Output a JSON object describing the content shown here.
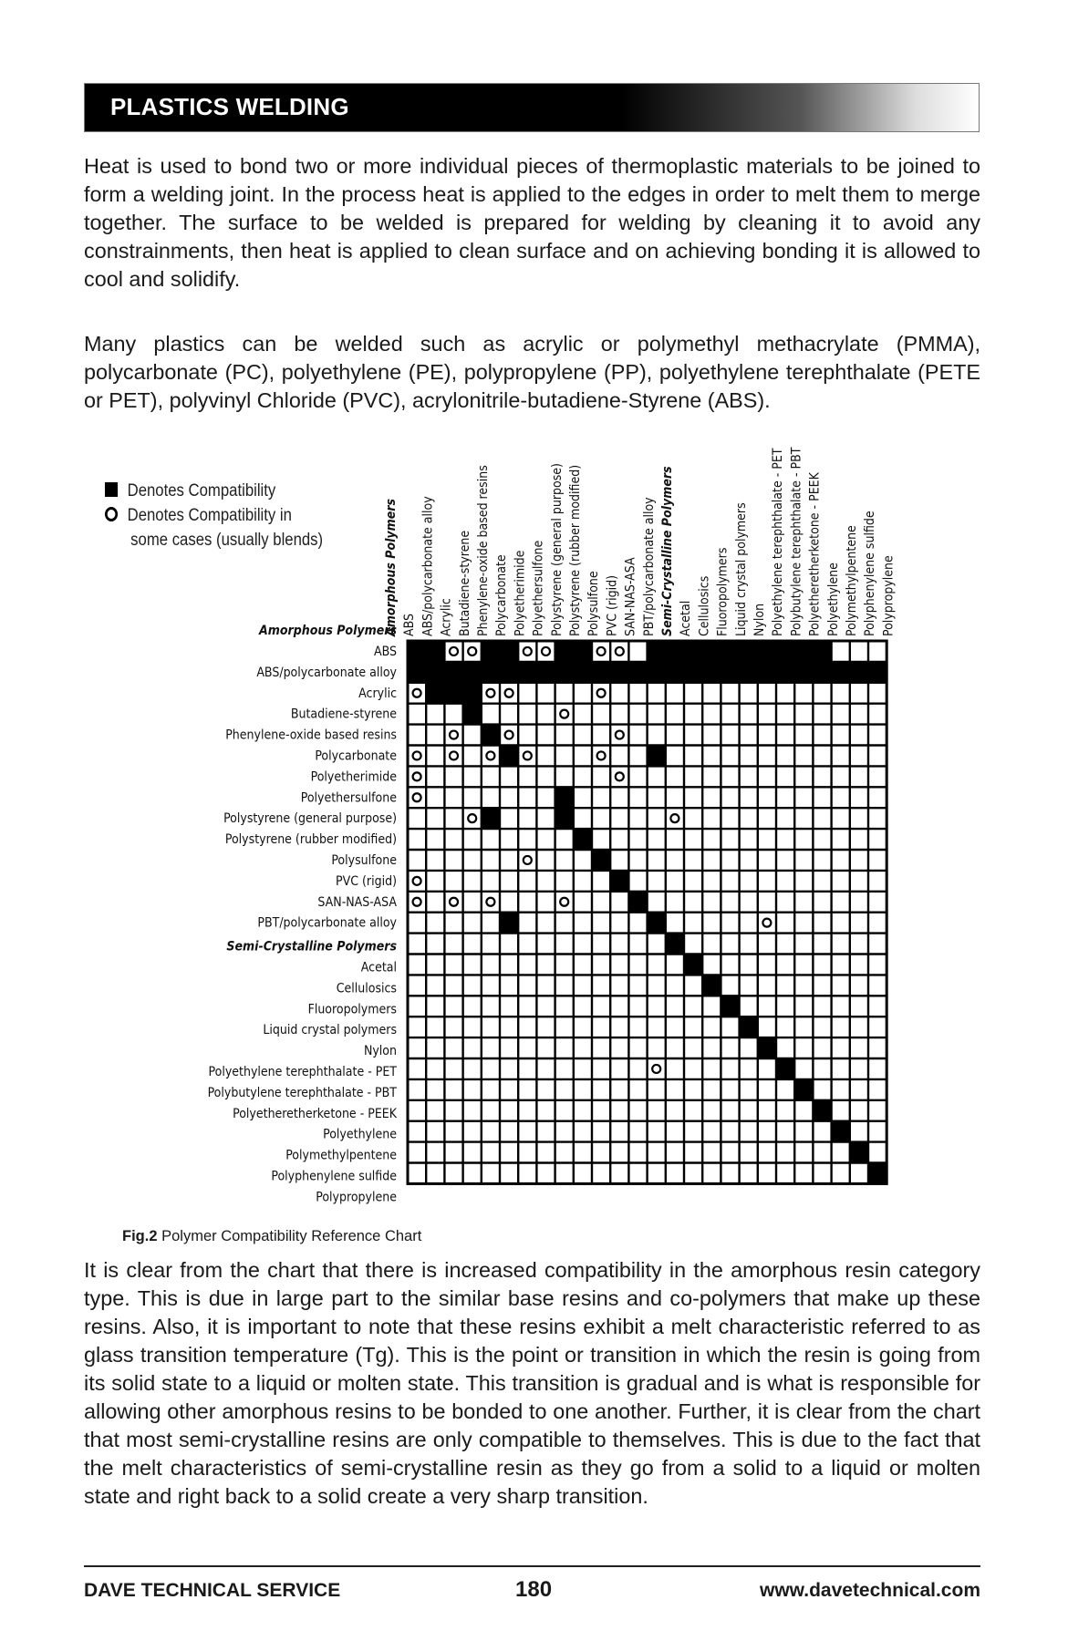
{
  "header": {
    "title": "PLASTICS WELDING"
  },
  "paragraphs": {
    "p1": "Heat is used to bond two or more individual pieces of thermoplastic materials to be joined to form a welding joint. In the process heat is applied to the edges in order to melt them to merge together. The surface to be welded is prepared for welding by cleaning it to avoid any constrainments, then heat is applied to clean surface and on achieving bonding it is allowed to cool and solidify.",
    "p2": "Many plastics can be welded such as acrylic or polymethyl methacrylate (PMMA), polycarbonate (PC), polyethylene (PE), polypropylene (PP), polyethylene terephthalate (PETE or PET), polyvinyl Chloride (PVC), acrylonitrile-butadiene-Styrene (ABS).",
    "p3": "It is clear from the chart that there is increased compatibility in the amorphous resin category type. This is due in large part to the similar base resins and co-polymers that make up these resins. Also, it is important to note that these resins exhibit a melt characteristic referred to as glass transition temperature (Tg). This is the point or transition in which the resin is going from its solid state to a liquid or molten state. This transition is gradual and is what is responsible for allowing other amorphous resins to be bonded to one another. Further, it is clear from the chart that most semi-crystalline resins are only compatible to themselves. This is due to the fact that the melt characteristics of semi-crystalline resin as they go from a solid to a liquid or molten state and right back to a solid create a very sharp transition."
  },
  "legend": {
    "filled_label": "Denotes Compatibility",
    "open_label_line1": "Denotes Compatibility in",
    "open_label_line2": "some cases (usually blends)"
  },
  "chart": {
    "amorphous_header": "Amorphous Polymers",
    "semi_header": "Semi-Crystalline Polymers",
    "amorphous": [
      "ABS",
      "ABS/polycarbonate alloy",
      "Acrylic",
      "Butadiene-styrene",
      "Phenylene-oxide based resins",
      "Polycarbonate",
      "Polyetherimide",
      "Polyethersulfone",
      "Polystyrene (general purpose)",
      "Polystyrene (rubber modified)",
      "Polysulfone",
      "PVC (rigid)",
      "SAN-NAS-ASA",
      "PBT/polycarbonate alloy"
    ],
    "semi": [
      "Acetal",
      "Cellulosics",
      "Fluoropolymers",
      "Liquid crystal polymers",
      "Nylon",
      "Polyethylene terephthalate - PET",
      "Polybutylene terephthalate - PBT",
      "Polyetheretherketone - PEEK",
      "Polyethylene",
      "Polymethylpentene",
      "Polyphenylene sulfide",
      "Polypropylene"
    ]
  },
  "chart_data": {
    "type": "table",
    "legend": {
      "F": "Denotes Compatibility",
      "O": "Denotes Compatibility in some cases (usually blends)"
    },
    "rows": [
      {
        "name": "ABS",
        "cells": "FFOOFFOOFFOO.FFFFFFFFFF"
      },
      {
        "name": "ABS/polycarbonate alloy",
        "cells": "FFFFFFFFFFFFFFFFFFFFFFFFFF"
      },
      {
        "name": "Acrylic",
        "cells": "OFFFOO....O"
      },
      {
        "name": "Butadiene-styrene",
        "cells": "...F....O"
      },
      {
        "name": "Phenylene-oxide based resins",
        "cells": "..O.FO.....O"
      },
      {
        "name": "Polycarbonate",
        "cells": "O.O.OFO...O..F"
      },
      {
        "name": "Polyetherimide",
        "cells": "O..........O"
      },
      {
        "name": "Polyethersulfone",
        "cells": "O.......F"
      },
      {
        "name": "Polystyrene (general purpose)",
        "cells": "...OF...F.....O"
      },
      {
        "name": "Polystyrene (rubber modified)",
        "cells": ".........F"
      },
      {
        "name": "Polysulfone",
        "cells": "......O...F"
      },
      {
        "name": "PVC (rigid)",
        "cells": "O..........F"
      },
      {
        "name": "SAN-NAS-ASA",
        "cells": "O.O.O...O...F"
      },
      {
        "name": "PBT/polycarbonate alloy",
        "cells": ".....F.......F.....O"
      },
      {
        "name": "Acetal",
        "cells": "..............F"
      },
      {
        "name": "Cellulosics",
        "cells": "...............F"
      },
      {
        "name": "Fluoropolymers",
        "cells": "................F"
      },
      {
        "name": "Liquid crystal polymers",
        "cells": ".................F"
      },
      {
        "name": "Nylon",
        "cells": "..................F"
      },
      {
        "name": "Polyethylene terephthalate - PET",
        "cells": "...................F"
      },
      {
        "name": "Polybutylene terephthalate - PBT",
        "cells": ".............O......F"
      },
      {
        "name": "Polyetheretherketone - PEEK",
        "cells": ".....................F"
      },
      {
        "name": "Polyethylene",
        "cells": "......................F"
      },
      {
        "name": "Polymethylpentene",
        "cells": ".......................F"
      },
      {
        "name": "Polyphenylene sulfide",
        "cells": "........................F"
      },
      {
        "name": "Polypropylene",
        "cells": ".........................F"
      }
    ]
  },
  "caption": {
    "label": "Fig.2",
    "text": " Polymer Compatibility Reference Chart"
  },
  "footer": {
    "left": "DAVE TECHNICAL SERVICE",
    "page": "180",
    "right": "www.davetechnical.com"
  }
}
